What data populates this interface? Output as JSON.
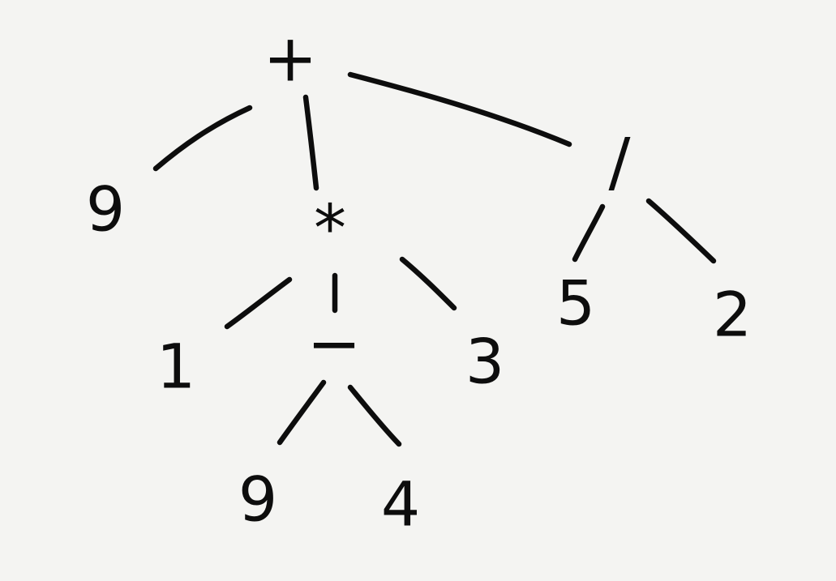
{
  "tree": {
    "root": {
      "label": "+",
      "children": {
        "left": {
          "label": "9"
        },
        "middle": {
          "label": "*",
          "children": {
            "left": {
              "label": "1"
            },
            "middle": {
              "label": "−",
              "children": {
                "left": {
                  "label": "9"
                },
                "right": {
                  "label": "4"
                }
              }
            },
            "right": {
              "label": "3"
            }
          }
        },
        "right": {
          "label": "/",
          "children": {
            "left": {
              "label": "5"
            },
            "right": {
              "label": "2"
            }
          }
        }
      }
    }
  }
}
